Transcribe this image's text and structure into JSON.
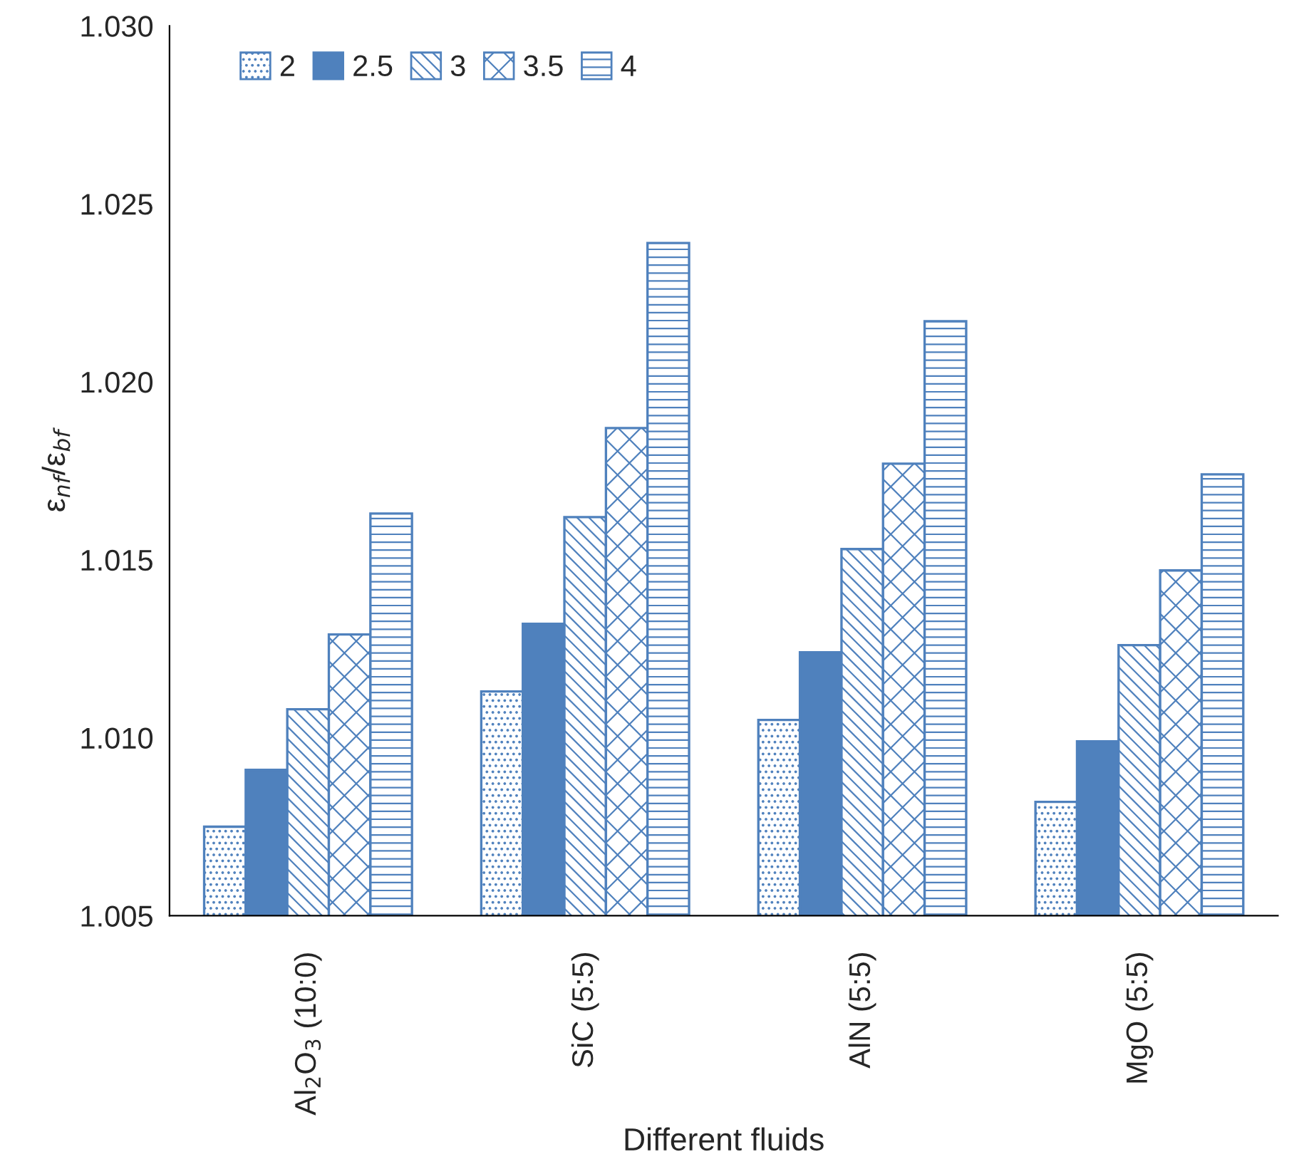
{
  "chart_data": {
    "type": "bar",
    "xlabel": "Different fluids",
    "ylabel": "ε$_{nf}$/ε$_{bf}$",
    "categories": [
      "Al$_{2}$O$_{3}$ (10:0)",
      "SiC (5:5)",
      "AlN (5:5)",
      "MgO (5:5)"
    ],
    "series": [
      {
        "name": "2",
        "color": "#4f81bd",
        "values": [
          1.0075,
          1.0113,
          1.0105,
          1.0082
        ]
      },
      {
        "name": "2.5",
        "color": "#4f81bd",
        "values": [
          1.0091,
          1.0132,
          1.0124,
          1.0099
        ]
      },
      {
        "name": "3",
        "color": "#4f81bd",
        "values": [
          1.0108,
          1.0162,
          1.0153,
          1.0126
        ]
      },
      {
        "name": "3.5",
        "color": "#4f81bd",
        "values": [
          1.0129,
          1.0187,
          1.0177,
          1.0147
        ]
      },
      {
        "name": "4",
        "color": "#4f81bd",
        "values": [
          1.0163,
          1.0239,
          1.0217,
          1.0174
        ]
      }
    ],
    "ylim": [
      1.005,
      1.03
    ],
    "yticks": [
      1.005,
      {
        "value": 1.01,
        "label": "1.010"
      },
      1.015,
      {
        "value": 1.02,
        "label": "1.020"
      },
      1.025,
      {
        "value": 1.03,
        "label": "1.030"
      }
    ],
    "grid": false,
    "legend": "top left"
  }
}
